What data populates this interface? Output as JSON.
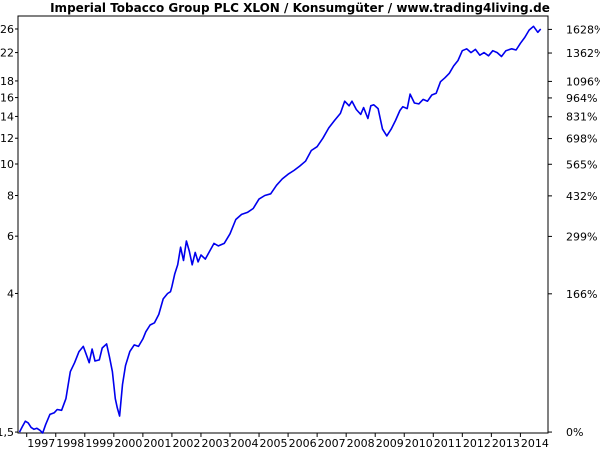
{
  "chart_data": {
    "type": "line",
    "title": "Imperial Tobacco Group PLC XLON / Konsumgüter / www.trading4living.de",
    "xlabel": "",
    "ylabel": "",
    "y_scale": "log",
    "xlim": [
      1996.7,
      2014.95
    ],
    "ylim": [
      1.49,
      28.5
    ],
    "left_axis_ticks": [
      1.5,
      4,
      6,
      8,
      10,
      12,
      14,
      16,
      18,
      22,
      26
    ],
    "left_axis_tick_labels": [
      "1,5",
      "4",
      "6",
      "8",
      "10",
      "12",
      "14",
      "16",
      "18",
      "22",
      "26"
    ],
    "right_axis_ticks": [
      {
        "label": "1628%",
        "value": 25.92
      },
      {
        "label": "1362%",
        "value": 21.93
      },
      {
        "label": "1096%",
        "value": 17.94
      },
      {
        "label": "964%",
        "value": 15.96
      },
      {
        "label": "831%",
        "value": 13.97
      },
      {
        "label": "698%",
        "value": 11.97
      },
      {
        "label": "565%",
        "value": 9.98
      },
      {
        "label": "432%",
        "value": 7.98
      },
      {
        "label": "299%",
        "value": 5.99
      },
      {
        "label": "166%",
        "value": 3.99
      },
      {
        "label": "0%",
        "value": 1.5
      }
    ],
    "x_tick_labels": [
      "1997",
      "1998",
      "1999",
      "2000",
      "2001",
      "2002",
      "2003",
      "2004",
      "2005",
      "2006",
      "2007",
      "2008",
      "2009",
      "2010",
      "2011",
      "2012",
      "2013",
      "2014"
    ],
    "grid": false,
    "legend": "none",
    "series_color": "#0000ee",
    "series": [
      {
        "x": [
          1996.75,
          1996.85,
          1996.95,
          1997.05,
          1997.15,
          1997.25,
          1997.35,
          1997.45,
          1997.55,
          1997.65,
          1997.8,
          1997.95,
          1998.05,
          1998.2,
          1998.35,
          1998.5,
          1998.65,
          1998.8,
          1998.95,
          1999.05,
          1999.15,
          1999.25,
          1999.35,
          1999.5,
          1999.6,
          1999.75,
          1999.85,
          1999.95,
          2000.05,
          2000.12,
          2000.2,
          2000.3,
          2000.4,
          2000.55,
          2000.7,
          2000.85,
          2001.0,
          2001.1,
          2001.25,
          2001.4,
          2001.55,
          2001.7,
          2001.85,
          2001.95,
          2002.0,
          2002.1,
          2002.2,
          2002.3,
          2002.4,
          2002.5,
          2002.6,
          2002.7,
          2002.8,
          2002.9,
          2003.0,
          2003.15,
          2003.3,
          2003.45,
          2003.6,
          2003.8,
          2004.0,
          2004.2,
          2004.4,
          2004.6,
          2004.8,
          2005.0,
          2005.2,
          2005.4,
          2005.6,
          2005.8,
          2006.0,
          2006.2,
          2006.4,
          2006.6,
          2006.8,
          2007.0,
          2007.2,
          2007.4,
          2007.6,
          2007.8,
          2007.95,
          2008.1,
          2008.2,
          2008.35,
          2008.5,
          2008.6,
          2008.75,
          2008.85,
          2008.95,
          2009.1,
          2009.25,
          2009.4,
          2009.55,
          2009.7,
          2009.85,
          2009.95,
          2010.1,
          2010.2,
          2010.35,
          2010.5,
          2010.65,
          2010.8,
          2010.95,
          2011.1,
          2011.25,
          2011.4,
          2011.55,
          2011.7,
          2011.85,
          2012.0,
          2012.15,
          2012.3,
          2012.45,
          2012.6,
          2012.75,
          2012.9,
          2013.05,
          2013.2,
          2013.35,
          2013.5,
          2013.7,
          2013.85,
          2014.0,
          2014.15,
          2014.3,
          2014.45,
          2014.6,
          2014.7
        ],
        "values": [
          1.5,
          1.56,
          1.62,
          1.6,
          1.55,
          1.53,
          1.54,
          1.52,
          1.49,
          1.58,
          1.7,
          1.72,
          1.76,
          1.75,
          1.9,
          2.3,
          2.45,
          2.65,
          2.75,
          2.6,
          2.45,
          2.7,
          2.48,
          2.5,
          2.72,
          2.8,
          2.55,
          2.3,
          1.9,
          1.78,
          1.68,
          2.1,
          2.4,
          2.65,
          2.78,
          2.75,
          2.9,
          3.05,
          3.2,
          3.25,
          3.45,
          3.85,
          4.0,
          4.05,
          4.2,
          4.6,
          4.9,
          5.55,
          5.05,
          5.8,
          5.4,
          4.9,
          5.35,
          5.0,
          5.25,
          5.1,
          5.4,
          5.7,
          5.6,
          5.7,
          6.1,
          6.75,
          7.0,
          7.1,
          7.3,
          7.8,
          8.0,
          8.1,
          8.6,
          9.0,
          9.3,
          9.55,
          9.85,
          10.2,
          11.0,
          11.3,
          12.0,
          12.9,
          13.6,
          14.3,
          15.6,
          15.1,
          15.6,
          14.7,
          14.2,
          14.9,
          13.8,
          15.1,
          15.2,
          14.8,
          12.8,
          12.2,
          12.8,
          13.6,
          14.6,
          15.0,
          14.8,
          16.4,
          15.4,
          15.3,
          15.8,
          15.6,
          16.3,
          16.5,
          17.9,
          18.4,
          19.0,
          20.0,
          20.8,
          22.3,
          22.6,
          22.0,
          22.5,
          21.6,
          22.0,
          21.5,
          22.3,
          22.0,
          21.4,
          22.3,
          22.6,
          22.4,
          23.5,
          24.5,
          25.8,
          26.5,
          25.4,
          26.0
        ]
      }
    ]
  }
}
